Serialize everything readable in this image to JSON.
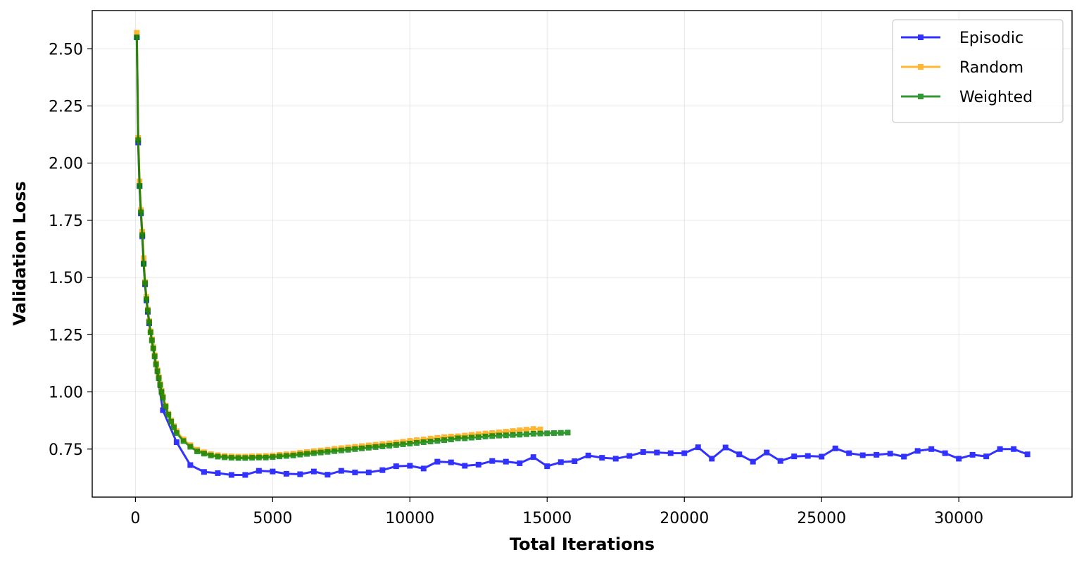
{
  "chart_data": {
    "type": "line",
    "xlabel": "Total Iterations",
    "ylabel": "Validation Loss",
    "xlim": [
      -1575,
      34125
    ],
    "ylim": [
      0.54,
      2.667
    ],
    "xticks": [
      0,
      5000,
      10000,
      15000,
      20000,
      25000,
      30000
    ],
    "yticks": [
      0.75,
      {
        "value": 1,
        "label": "1.00"
      },
      1.25,
      {
        "value": 1.5,
        "label": "1.50"
      },
      1.75,
      {
        "value": 2,
        "label": "2.00"
      },
      2.25,
      {
        "value": 2.5,
        "label": "2.50"
      }
    ],
    "grid": true,
    "legend": "upper right",
    "series": [
      {
        "name": "Episodic",
        "color": "#0000ff",
        "x": [
          50,
          100,
          150,
          200,
          250,
          300,
          350,
          400,
          450,
          500,
          1000,
          1500,
          2000,
          2500,
          3000,
          3500,
          4000,
          4500,
          5000,
          5500,
          6000,
          6500,
          7000,
          7500,
          8000,
          8500,
          9000,
          9500,
          10000,
          10500,
          11000,
          11500,
          12000,
          12500,
          13000,
          13500,
          14000,
          14500,
          15000,
          15500,
          16000,
          16500,
          17000,
          17500,
          18000,
          18500,
          19000,
          19500,
          20000,
          20500,
          21000,
          21500,
          22000,
          22500,
          23000,
          23500,
          24000,
          24500,
          25000,
          25500,
          26000,
          26500,
          27000,
          27500,
          28000,
          28500,
          29000,
          29500,
          30000,
          30500,
          31000,
          31500,
          32000,
          32500
        ],
        "values": [
          2.55,
          2.09,
          1.9,
          1.78,
          1.68,
          1.56,
          1.47,
          1.4,
          1.35,
          1.3,
          0.92,
          0.78,
          0.68,
          0.65,
          0.645,
          0.637,
          0.637,
          0.655,
          0.652,
          0.642,
          0.64,
          0.652,
          0.638,
          0.655,
          0.648,
          0.648,
          0.658,
          0.675,
          0.677,
          0.665,
          0.695,
          0.692,
          0.677,
          0.682,
          0.698,
          0.695,
          0.688,
          0.715,
          0.675,
          0.693,
          0.697,
          0.722,
          0.712,
          0.708,
          0.72,
          0.737,
          0.735,
          0.732,
          0.732,
          0.758,
          0.708,
          0.757,
          0.727,
          0.695,
          0.735,
          0.698,
          0.718,
          0.72,
          0.717,
          0.753,
          0.732,
          0.723,
          0.725,
          0.73,
          0.717,
          0.742,
          0.75,
          0.732,
          0.708,
          0.725,
          0.718,
          0.75,
          0.75,
          0.727
        ]
      },
      {
        "name": "Random",
        "color": "#ffa500",
        "x": [
          50,
          100,
          150,
          200,
          250,
          300,
          350,
          400,
          450,
          500,
          550,
          600,
          650,
          700,
          750,
          800,
          850,
          900,
          950,
          1000,
          1100,
          1200,
          1300,
          1400,
          1500,
          1750,
          2000,
          2250,
          2500,
          2750,
          3000,
          3250,
          3500,
          3750,
          4000,
          4250,
          4500,
          4750,
          5000,
          5250,
          5500,
          5750,
          6000,
          6250,
          6500,
          6750,
          7000,
          7250,
          7500,
          7750,
          8000,
          8250,
          8500,
          8750,
          9000,
          9250,
          9500,
          9750,
          10000,
          10250,
          10500,
          10750,
          11000,
          11250,
          11500,
          11750,
          12000,
          12250,
          12500,
          12750,
          13000,
          13250,
          13500,
          13750,
          14000,
          14250,
          14500,
          14750
        ],
        "values": [
          2.57,
          2.11,
          1.92,
          1.795,
          1.7,
          1.585,
          1.48,
          1.415,
          1.36,
          1.31,
          1.265,
          1.23,
          1.195,
          1.16,
          1.125,
          1.095,
          1.065,
          1.035,
          1.005,
          0.98,
          0.94,
          0.905,
          0.875,
          0.85,
          0.828,
          0.792,
          0.767,
          0.747,
          0.736,
          0.728,
          0.723,
          0.72,
          0.718,
          0.717,
          0.717,
          0.718,
          0.719,
          0.72,
          0.722,
          0.725,
          0.727,
          0.73,
          0.734,
          0.737,
          0.741,
          0.744,
          0.747,
          0.751,
          0.754,
          0.757,
          0.76,
          0.763,
          0.766,
          0.769,
          0.772,
          0.775,
          0.778,
          0.782,
          0.786,
          0.789,
          0.792,
          0.796,
          0.799,
          0.802,
          0.805,
          0.806,
          0.809,
          0.812,
          0.815,
          0.818,
          0.82,
          0.823,
          0.826,
          0.829,
          0.832,
          0.835,
          0.838,
          0.836
        ]
      },
      {
        "name": "Weighted",
        "color": "#008000",
        "x": [
          50,
          100,
          150,
          200,
          250,
          300,
          350,
          400,
          450,
          500,
          550,
          600,
          650,
          700,
          750,
          800,
          850,
          900,
          950,
          1000,
          1100,
          1200,
          1300,
          1400,
          1500,
          1750,
          2000,
          2250,
          2500,
          2750,
          3000,
          3250,
          3500,
          3750,
          4000,
          4250,
          4500,
          4750,
          5000,
          5250,
          5500,
          5750,
          6000,
          6250,
          6500,
          6750,
          7000,
          7250,
          7500,
          7750,
          8000,
          8250,
          8500,
          8750,
          9000,
          9250,
          9500,
          9750,
          10000,
          10250,
          10500,
          10750,
          11000,
          11250,
          11500,
          11750,
          12000,
          12250,
          12500,
          12750,
          13000,
          13250,
          13500,
          13750,
          14000,
          14250,
          14500,
          14750,
          15000,
          15250,
          15500,
          15750
        ],
        "values": [
          2.55,
          2.1,
          1.9,
          1.785,
          1.685,
          1.56,
          1.475,
          1.405,
          1.355,
          1.305,
          1.26,
          1.225,
          1.19,
          1.155,
          1.12,
          1.09,
          1.06,
          1.03,
          1.0,
          0.975,
          0.935,
          0.9,
          0.87,
          0.845,
          0.82,
          0.785,
          0.76,
          0.74,
          0.73,
          0.722,
          0.717,
          0.714,
          0.712,
          0.711,
          0.711,
          0.712,
          0.713,
          0.713,
          0.715,
          0.718,
          0.72,
          0.722,
          0.726,
          0.729,
          0.732,
          0.735,
          0.738,
          0.741,
          0.744,
          0.747,
          0.75,
          0.753,
          0.756,
          0.759,
          0.762,
          0.765,
          0.768,
          0.771,
          0.774,
          0.777,
          0.78,
          0.783,
          0.786,
          0.789,
          0.792,
          0.797,
          0.797,
          0.8,
          0.802,
          0.805,
          0.807,
          0.809,
          0.81,
          0.812,
          0.813,
          0.815,
          0.817,
          0.818,
          0.819,
          0.82,
          0.821,
          0.822
        ]
      }
    ]
  }
}
